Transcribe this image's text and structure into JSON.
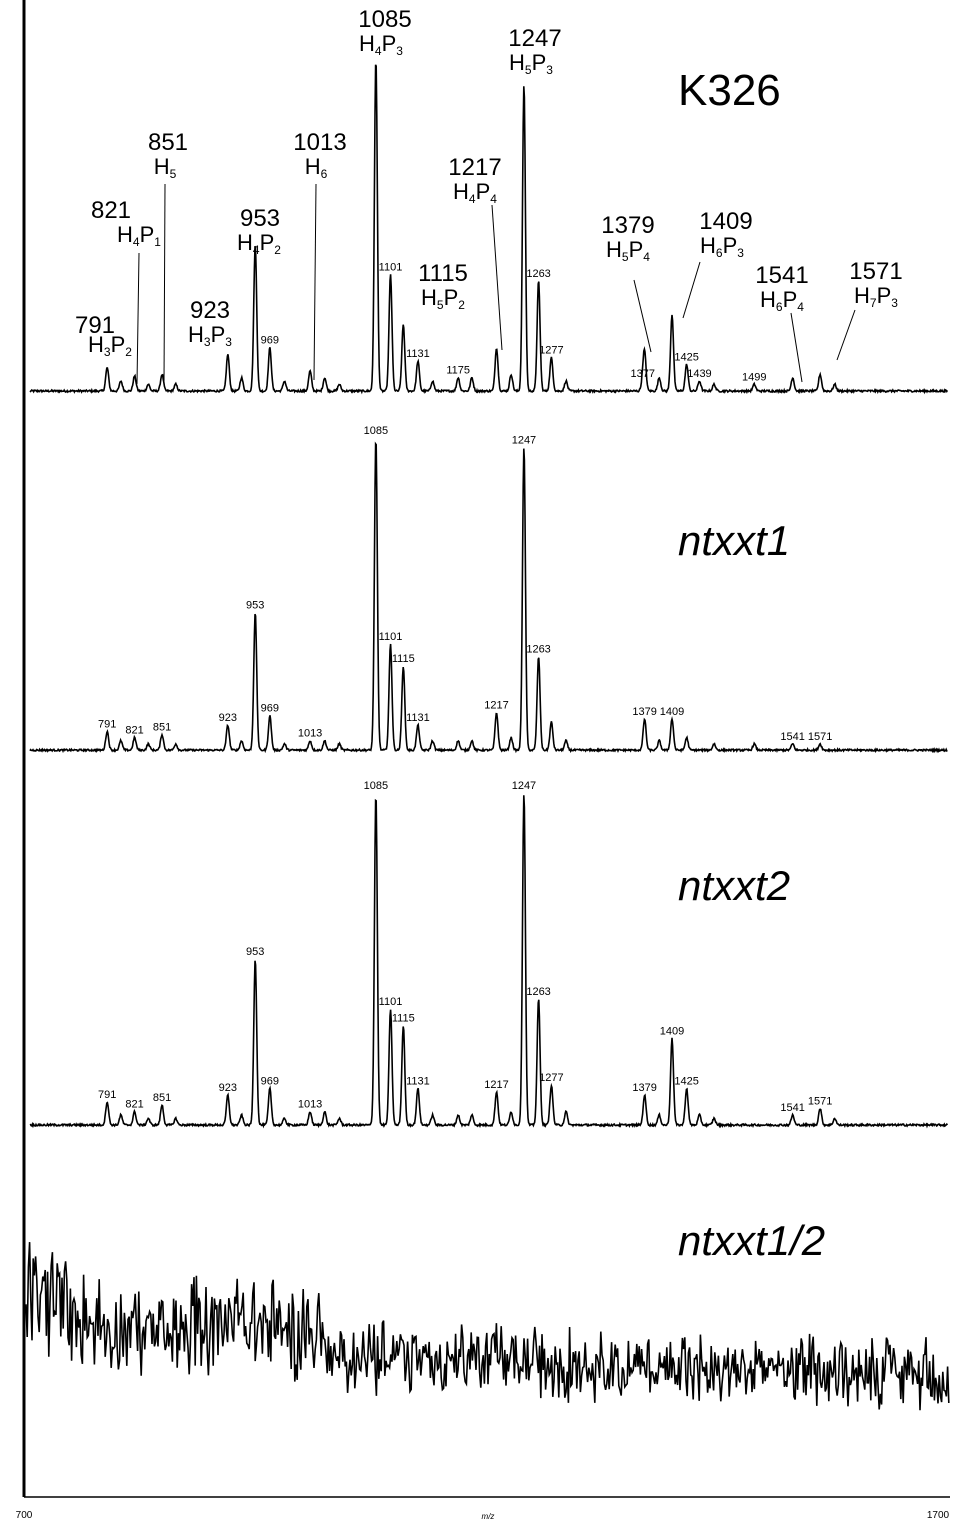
{
  "chart_data": {
    "type": "line",
    "xlabel": "m/z",
    "xlim": [
      700,
      1700
    ],
    "x_ticks": [
      "700",
      "1700"
    ],
    "grid": false,
    "panels": [
      {
        "name": "K326",
        "baseline": 0.02,
        "peaks": [
          {
            "x": 791,
            "y": 0.07
          },
          {
            "x": 806,
            "y": 0.03
          },
          {
            "x": 821,
            "y": 0.045
          },
          {
            "x": 836,
            "y": 0.02
          },
          {
            "x": 851,
            "y": 0.05
          },
          {
            "x": 866,
            "y": 0.02
          },
          {
            "x": 923,
            "y": 0.11
          },
          {
            "x": 938,
            "y": 0.04
          },
          {
            "x": 953,
            "y": 0.44
          },
          {
            "x": 969,
            "y": 0.13
          },
          {
            "x": 985,
            "y": 0.03
          },
          {
            "x": 1013,
            "y": 0.06
          },
          {
            "x": 1029,
            "y": 0.04
          },
          {
            "x": 1045,
            "y": 0.02
          },
          {
            "x": 1085,
            "y": 1.0
          },
          {
            "x": 1101,
            "y": 0.35
          },
          {
            "x": 1115,
            "y": 0.2
          },
          {
            "x": 1131,
            "y": 0.09
          },
          {
            "x": 1147,
            "y": 0.03
          },
          {
            "x": 1175,
            "y": 0.04
          },
          {
            "x": 1190,
            "y": 0.04
          },
          {
            "x": 1217,
            "y": 0.13
          },
          {
            "x": 1233,
            "y": 0.05
          },
          {
            "x": 1247,
            "y": 0.92
          },
          {
            "x": 1263,
            "y": 0.33
          },
          {
            "x": 1277,
            "y": 0.1
          },
          {
            "x": 1293,
            "y": 0.03
          },
          {
            "x": 1377,
            "y": 0.03
          },
          {
            "x": 1379,
            "y": 0.11
          },
          {
            "x": 1395,
            "y": 0.04
          },
          {
            "x": 1409,
            "y": 0.23
          },
          {
            "x": 1425,
            "y": 0.08
          },
          {
            "x": 1439,
            "y": 0.03
          },
          {
            "x": 1455,
            "y": 0.02
          },
          {
            "x": 1499,
            "y": 0.02
          },
          {
            "x": 1541,
            "y": 0.04
          },
          {
            "x": 1571,
            "y": 0.05
          },
          {
            "x": 1587,
            "y": 0.02
          }
        ],
        "annotations": [
          {
            "mass": "791",
            "comp": "H",
            "sub": [
              "3",
              "2"
            ],
            "x": 791,
            "style": "big"
          },
          {
            "mass": "821",
            "comp": "H",
            "sub": [
              "4",
              "1"
            ],
            "x": 821,
            "style": "big"
          },
          {
            "mass": "851",
            "comp": "H",
            "sub": [
              "5"
            ],
            "x": 851,
            "style": "big"
          },
          {
            "mass": "923",
            "comp": "H",
            "sub": [
              "3",
              "3"
            ],
            "x": 923,
            "style": "big"
          },
          {
            "mass": "953",
            "comp": "H",
            "sub": [
              "4",
              "2"
            ],
            "x": 953,
            "style": "big"
          },
          {
            "mass": "1013",
            "comp": "H",
            "sub": [
              "6"
            ],
            "x": 1013,
            "style": "big"
          },
          {
            "mass": "1085",
            "comp": "H",
            "sub": [
              "4",
              "3"
            ],
            "x": 1085,
            "style": "big"
          },
          {
            "mass": "1115",
            "comp": "H",
            "sub": [
              "5",
              "2"
            ],
            "x": 1115,
            "style": "big"
          },
          {
            "mass": "1217",
            "comp": "H",
            "sub": [
              "4",
              "4"
            ],
            "x": 1217,
            "style": "big"
          },
          {
            "mass": "1247",
            "comp": "H",
            "sub": [
              "5",
              "3"
            ],
            "x": 1247,
            "style": "big"
          },
          {
            "mass": "1379",
            "comp": "H",
            "sub": [
              "5",
              "4"
            ],
            "x": 1379,
            "style": "big"
          },
          {
            "mass": "1409",
            "comp": "H",
            "sub": [
              "6",
              "3"
            ],
            "x": 1409,
            "style": "big"
          },
          {
            "mass": "1541",
            "comp": "H",
            "sub": [
              "6",
              "4"
            ],
            "x": 1541,
            "style": "big"
          },
          {
            "mass": "1571",
            "comp": "H",
            "sub": [
              "7",
              "3"
            ],
            "x": 1571,
            "style": "big"
          }
        ],
        "small_labels": [
          "969",
          "1101",
          "1131",
          "1175",
          "1263",
          "1277",
          "1377",
          "1425",
          "1439",
          "1499"
        ]
      },
      {
        "name": "ntxxt1",
        "baseline": 0.02,
        "peaks": [
          {
            "x": 791,
            "y": 0.06
          },
          {
            "x": 806,
            "y": 0.03
          },
          {
            "x": 821,
            "y": 0.04
          },
          {
            "x": 836,
            "y": 0.02
          },
          {
            "x": 851,
            "y": 0.05
          },
          {
            "x": 866,
            "y": 0.02
          },
          {
            "x": 923,
            "y": 0.08
          },
          {
            "x": 938,
            "y": 0.03
          },
          {
            "x": 953,
            "y": 0.44
          },
          {
            "x": 969,
            "y": 0.11
          },
          {
            "x": 985,
            "y": 0.02
          },
          {
            "x": 1013,
            "y": 0.03
          },
          {
            "x": 1029,
            "y": 0.03
          },
          {
            "x": 1045,
            "y": 0.02
          },
          {
            "x": 1085,
            "y": 1.0
          },
          {
            "x": 1101,
            "y": 0.34
          },
          {
            "x": 1115,
            "y": 0.27
          },
          {
            "x": 1131,
            "y": 0.08
          },
          {
            "x": 1147,
            "y": 0.03
          },
          {
            "x": 1175,
            "y": 0.03
          },
          {
            "x": 1190,
            "y": 0.03
          },
          {
            "x": 1217,
            "y": 0.12
          },
          {
            "x": 1233,
            "y": 0.04
          },
          {
            "x": 1247,
            "y": 0.97
          },
          {
            "x": 1263,
            "y": 0.3
          },
          {
            "x": 1277,
            "y": 0.09
          },
          {
            "x": 1293,
            "y": 0.03
          },
          {
            "x": 1379,
            "y": 0.1
          },
          {
            "x": 1395,
            "y": 0.03
          },
          {
            "x": 1409,
            "y": 0.1
          },
          {
            "x": 1425,
            "y": 0.04
          },
          {
            "x": 1455,
            "y": 0.02
          },
          {
            "x": 1499,
            "y": 0.02
          },
          {
            "x": 1541,
            "y": 0.02
          },
          {
            "x": 1571,
            "y": 0.02
          }
        ],
        "small_labels": [
          "791",
          "821",
          "851",
          "923",
          "953",
          "969",
          "1013",
          "1085",
          "1101",
          "1115",
          "1131",
          "1217",
          "1247",
          "1263",
          "1379",
          "1409",
          "1541",
          "1571"
        ]
      },
      {
        "name": "ntxxt2",
        "baseline": 0.02,
        "peaks": [
          {
            "x": 791,
            "y": 0.07
          },
          {
            "x": 806,
            "y": 0.03
          },
          {
            "x": 821,
            "y": 0.04
          },
          {
            "x": 836,
            "y": 0.02
          },
          {
            "x": 851,
            "y": 0.06
          },
          {
            "x": 866,
            "y": 0.02
          },
          {
            "x": 923,
            "y": 0.09
          },
          {
            "x": 938,
            "y": 0.03
          },
          {
            "x": 953,
            "y": 0.5
          },
          {
            "x": 969,
            "y": 0.11
          },
          {
            "x": 985,
            "y": 0.02
          },
          {
            "x": 1013,
            "y": 0.04
          },
          {
            "x": 1029,
            "y": 0.04
          },
          {
            "x": 1045,
            "y": 0.02
          },
          {
            "x": 1085,
            "y": 1.0
          },
          {
            "x": 1101,
            "y": 0.35
          },
          {
            "x": 1115,
            "y": 0.3
          },
          {
            "x": 1131,
            "y": 0.11
          },
          {
            "x": 1147,
            "y": 0.03
          },
          {
            "x": 1175,
            "y": 0.03
          },
          {
            "x": 1190,
            "y": 0.03
          },
          {
            "x": 1217,
            "y": 0.1
          },
          {
            "x": 1233,
            "y": 0.04
          },
          {
            "x": 1247,
            "y": 1.0
          },
          {
            "x": 1263,
            "y": 0.38
          },
          {
            "x": 1277,
            "y": 0.12
          },
          {
            "x": 1293,
            "y": 0.04
          },
          {
            "x": 1379,
            "y": 0.09
          },
          {
            "x": 1395,
            "y": 0.03
          },
          {
            "x": 1409,
            "y": 0.26
          },
          {
            "x": 1425,
            "y": 0.11
          },
          {
            "x": 1439,
            "y": 0.03
          },
          {
            "x": 1455,
            "y": 0.02
          },
          {
            "x": 1541,
            "y": 0.03
          },
          {
            "x": 1571,
            "y": 0.05
          },
          {
            "x": 1587,
            "y": 0.02
          }
        ],
        "small_labels": [
          "791",
          "821",
          "851",
          "923",
          "953",
          "969",
          "1013",
          "1085",
          "1101",
          "1115",
          "1131",
          "1217",
          "1247",
          "1263",
          "1277",
          "1379",
          "1409",
          "1425",
          "1541",
          "1571"
        ]
      },
      {
        "name": "ntxxt1/2",
        "noise_only": true,
        "peaks": []
      }
    ]
  }
}
